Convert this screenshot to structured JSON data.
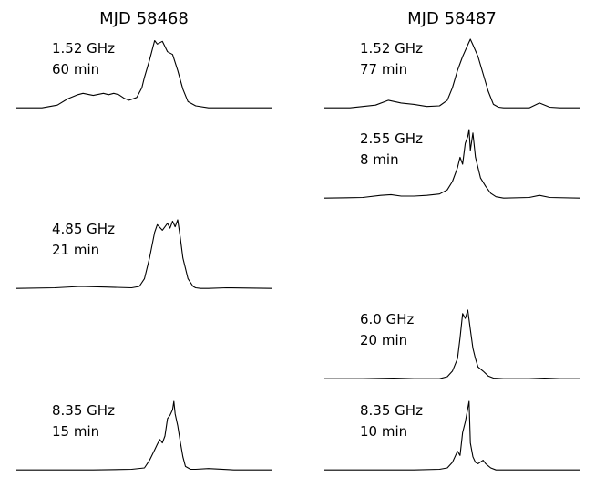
{
  "figure": {
    "columns": [
      {
        "title": "MJD 58468",
        "panels": [
          {
            "row": 0,
            "freq": "1.52 GHz",
            "duration": "60 min"
          },
          {
            "row": 2,
            "freq": "4.85 GHz",
            "duration": "21 min"
          },
          {
            "row": 4,
            "freq": "8.35 GHz",
            "duration": "15 min"
          }
        ]
      },
      {
        "title": "MJD 58487",
        "panels": [
          {
            "row": 0,
            "freq": "1.52 GHz",
            "duration": "77 min"
          },
          {
            "row": 1,
            "freq": "2.55 GHz",
            "duration": "8 min"
          },
          {
            "row": 3,
            "freq": "6.0 GHz",
            "duration": "20 min"
          },
          {
            "row": 4,
            "freq": "8.35 GHz",
            "duration": "10 min"
          }
        ]
      }
    ]
  },
  "chart_data": {
    "type": "line",
    "title": "",
    "xlabel": "",
    "ylabel": "",
    "axes_visible": false,
    "grid": false,
    "x_range": [
      0,
      1
    ],
    "note_x": "pulse phase across the panel (0-1)",
    "profiles": [
      {
        "column": "MJD 58468",
        "freq": "1.52 GHz",
        "duration": "60 min",
        "x": [
          0,
          0.1,
          0.16,
          0.2,
          0.24,
          0.26,
          0.3,
          0.34,
          0.36,
          0.38,
          0.4,
          0.42,
          0.44,
          0.47,
          0.49,
          0.5,
          0.52,
          0.54,
          0.55,
          0.57,
          0.59,
          0.61,
          0.63,
          0.65,
          0.67,
          0.7,
          0.75,
          0.85,
          1.0
        ],
        "y": [
          0.01,
          0.01,
          0.05,
          0.14,
          0.2,
          0.22,
          0.19,
          0.22,
          0.2,
          0.22,
          0.2,
          0.15,
          0.12,
          0.16,
          0.3,
          0.45,
          0.7,
          0.98,
          0.93,
          0.97,
          0.82,
          0.78,
          0.55,
          0.28,
          0.1,
          0.04,
          0.01,
          0.01,
          0.01
        ]
      },
      {
        "column": "MJD 58468",
        "freq": "4.85 GHz",
        "duration": "21 min",
        "x": [
          0,
          0.15,
          0.25,
          0.35,
          0.45,
          0.48,
          0.5,
          0.52,
          0.54,
          0.55,
          0.57,
          0.59,
          0.6,
          0.61,
          0.62,
          0.63,
          0.64,
          0.65,
          0.67,
          0.69,
          0.7,
          0.72,
          0.75,
          0.82,
          1.0
        ],
        "y": [
          0.01,
          0.02,
          0.04,
          0.03,
          0.02,
          0.04,
          0.15,
          0.45,
          0.82,
          0.93,
          0.85,
          0.95,
          0.88,
          0.98,
          0.9,
          1.0,
          0.75,
          0.45,
          0.15,
          0.04,
          0.02,
          0.01,
          0.01,
          0.02,
          0.01
        ]
      },
      {
        "column": "MJD 58468",
        "freq": "8.35 GHz",
        "duration": "15 min",
        "x": [
          0,
          0.3,
          0.45,
          0.5,
          0.52,
          0.54,
          0.55,
          0.56,
          0.57,
          0.58,
          0.59,
          0.6,
          0.61,
          0.615,
          0.62,
          0.63,
          0.64,
          0.65,
          0.66,
          0.68,
          0.7,
          0.75,
          0.85,
          1.0
        ],
        "y": [
          0.01,
          0.01,
          0.02,
          0.04,
          0.15,
          0.3,
          0.38,
          0.45,
          0.4,
          0.5,
          0.75,
          0.8,
          0.88,
          1.0,
          0.82,
          0.65,
          0.42,
          0.2,
          0.06,
          0.02,
          0.02,
          0.03,
          0.01,
          0.01
        ]
      },
      {
        "column": "MJD 58487",
        "freq": "1.52 GHz",
        "duration": "77 min",
        "x": [
          0,
          0.1,
          0.2,
          0.25,
          0.3,
          0.35,
          0.4,
          0.45,
          0.48,
          0.5,
          0.52,
          0.54,
          0.56,
          0.57,
          0.58,
          0.6,
          0.62,
          0.64,
          0.66,
          0.68,
          0.7,
          0.75,
          0.8,
          0.84,
          0.88,
          0.92,
          1.0
        ],
        "y": [
          0.01,
          0.01,
          0.05,
          0.12,
          0.08,
          0.06,
          0.03,
          0.04,
          0.12,
          0.3,
          0.55,
          0.75,
          0.92,
          1.0,
          0.92,
          0.75,
          0.5,
          0.25,
          0.06,
          0.02,
          0.01,
          0.01,
          0.01,
          0.08,
          0.02,
          0.01,
          0.01
        ]
      },
      {
        "column": "MJD 58487",
        "freq": "2.55 GHz",
        "duration": "8 min",
        "x": [
          0,
          0.15,
          0.22,
          0.26,
          0.3,
          0.35,
          0.4,
          0.45,
          0.48,
          0.5,
          0.52,
          0.53,
          0.54,
          0.55,
          0.56,
          0.565,
          0.57,
          0.58,
          0.59,
          0.6,
          0.61,
          0.63,
          0.65,
          0.67,
          0.7,
          0.8,
          0.84,
          0.88,
          1.0
        ],
        "y": [
          0.01,
          0.02,
          0.05,
          0.06,
          0.04,
          0.04,
          0.05,
          0.07,
          0.13,
          0.25,
          0.45,
          0.6,
          0.5,
          0.8,
          0.9,
          1.0,
          0.7,
          0.95,
          0.6,
          0.45,
          0.3,
          0.18,
          0.08,
          0.03,
          0.01,
          0.02,
          0.05,
          0.02,
          0.01
        ]
      },
      {
        "column": "MJD 58487",
        "freq": "6.0 GHz",
        "duration": "20 min",
        "x": [
          0,
          0.15,
          0.27,
          0.35,
          0.45,
          0.48,
          0.5,
          0.52,
          0.53,
          0.54,
          0.55,
          0.56,
          0.57,
          0.58,
          0.59,
          0.6,
          0.62,
          0.64,
          0.66,
          0.7,
          0.8,
          0.86,
          0.92,
          1.0
        ],
        "y": [
          0.01,
          0.01,
          0.02,
          0.01,
          0.01,
          0.04,
          0.12,
          0.3,
          0.6,
          0.95,
          0.88,
          1.0,
          0.72,
          0.45,
          0.3,
          0.18,
          0.12,
          0.05,
          0.02,
          0.01,
          0.01,
          0.02,
          0.01,
          0.01
        ]
      },
      {
        "column": "MJD 58487",
        "freq": "8.35 GHz",
        "duration": "10 min",
        "x": [
          0,
          0.2,
          0.35,
          0.45,
          0.48,
          0.5,
          0.52,
          0.53,
          0.54,
          0.55,
          0.56,
          0.565,
          0.57,
          0.58,
          0.59,
          0.6,
          0.62,
          0.63,
          0.65,
          0.67,
          0.7,
          1.0
        ],
        "y": [
          0.01,
          0.01,
          0.01,
          0.02,
          0.04,
          0.12,
          0.28,
          0.22,
          0.55,
          0.7,
          0.9,
          1.0,
          0.4,
          0.2,
          0.12,
          0.1,
          0.15,
          0.1,
          0.04,
          0.01,
          0.01,
          0.01
        ]
      }
    ]
  }
}
